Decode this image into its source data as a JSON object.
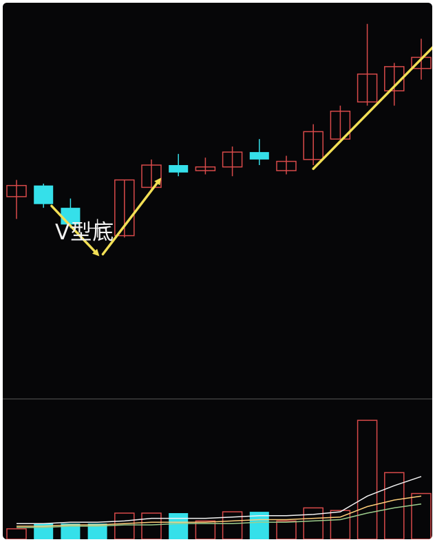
{
  "chart_data": {
    "type": "candlestick",
    "title": "",
    "xlabel": "",
    "ylabel": "",
    "grid": false,
    "legend": "none",
    "annotations": [
      {
        "text": "V型底"
      }
    ],
    "price_range": [
      0,
      100
    ],
    "volume_range": [
      0,
      100
    ],
    "candles": [
      {
        "open": 51.5,
        "high": 56.0,
        "low": 45.5,
        "close": 54.5,
        "color": "red"
      },
      {
        "open": 54.5,
        "high": 55.0,
        "low": 48.5,
        "close": 49.5,
        "color": "cyan"
      },
      {
        "open": 48.5,
        "high": 51.0,
        "low": 43.0,
        "close": 44.0,
        "color": "cyan"
      },
      {
        "open": 43.5,
        "high": 45.5,
        "low": 40.5,
        "close": 42.5,
        "color": "white"
      },
      {
        "open": 41.0,
        "high": 56.0,
        "low": 40.5,
        "close": 56.0,
        "color": "red"
      },
      {
        "open": 54.0,
        "high": 61.5,
        "low": 53.0,
        "close": 60.0,
        "color": "red"
      },
      {
        "open": 60.0,
        "high": 63.0,
        "low": 57.0,
        "close": 58.0,
        "color": "cyan"
      },
      {
        "open": 58.5,
        "high": 62.0,
        "low": 57.5,
        "close": 59.5,
        "color": "red"
      },
      {
        "open": 59.5,
        "high": 65.0,
        "low": 57.0,
        "close": 63.5,
        "color": "red"
      },
      {
        "open": 63.5,
        "high": 67.0,
        "low": 60.0,
        "close": 61.5,
        "color": "cyan"
      },
      {
        "open": 58.5,
        "high": 62.5,
        "low": 57.5,
        "close": 61.0,
        "color": "red"
      },
      {
        "open": 61.5,
        "high": 71.0,
        "low": 60.0,
        "close": 69.0,
        "color": "red"
      },
      {
        "open": 67.0,
        "high": 76.0,
        "low": 67.0,
        "close": 74.5,
        "color": "red"
      },
      {
        "open": 77.0,
        "high": 98.0,
        "low": 76.0,
        "close": 84.5,
        "color": "red"
      },
      {
        "open": 80.0,
        "high": 87.5,
        "low": 76.0,
        "close": 86.5,
        "color": "red"
      },
      {
        "open": 86.0,
        "high": 94.0,
        "low": 83.0,
        "close": 89.0,
        "color": "red"
      }
    ],
    "volume": [
      {
        "value": 8,
        "color": "red"
      },
      {
        "value": 12,
        "color": "cyan"
      },
      {
        "value": 12,
        "color": "cyan"
      },
      {
        "value": 12,
        "color": "cyan"
      },
      {
        "value": 20,
        "color": "red"
      },
      {
        "value": 20,
        "color": "red"
      },
      {
        "value": 20,
        "color": "cyan"
      },
      {
        "value": 14,
        "color": "red"
      },
      {
        "value": 21,
        "color": "red"
      },
      {
        "value": 21,
        "color": "cyan"
      },
      {
        "value": 14,
        "color": "red"
      },
      {
        "value": 24,
        "color": "red"
      },
      {
        "value": 22,
        "color": "red"
      },
      {
        "value": 91,
        "color": "red"
      },
      {
        "value": 51,
        "color": "red"
      },
      {
        "value": 35,
        "color": "red"
      }
    ],
    "volume_ma_white": [
      12,
      12,
      13,
      13,
      14,
      16,
      16,
      16,
      17,
      18,
      18,
      19,
      21,
      33,
      41,
      48
    ],
    "volume_ma_yellow": [
      10,
      10,
      11,
      11,
      12,
      13,
      13,
      13,
      14,
      15,
      15,
      16,
      17,
      25,
      30,
      33
    ],
    "volume_ma_green": [
      9,
      9,
      10,
      10,
      11,
      11,
      12,
      12,
      12,
      13,
      13,
      14,
      15,
      20,
      24,
      27
    ],
    "trend_arrows": [
      {
        "from_index": 1.3,
        "from_value": 49.0,
        "to_index": 3.0,
        "to_value": 36.0
      },
      {
        "from_index": 3.2,
        "from_value": 36.0,
        "to_index": 5.3,
        "to_value": 56.0
      },
      {
        "from_index": 11.0,
        "from_value": 59.0,
        "to_index": 15.6,
        "to_value": 93.0
      }
    ],
    "colors": {
      "background": "#060608",
      "up": "#d94a4a",
      "down": "#35e0ea",
      "neutral": "#e6e6e6",
      "arrow": "#f2df55",
      "separator": "#5a5a5a",
      "ma_white": "#f4f4f4",
      "ma_yellow": "#ffcf7a",
      "ma_green": "#9ecf8e"
    }
  }
}
